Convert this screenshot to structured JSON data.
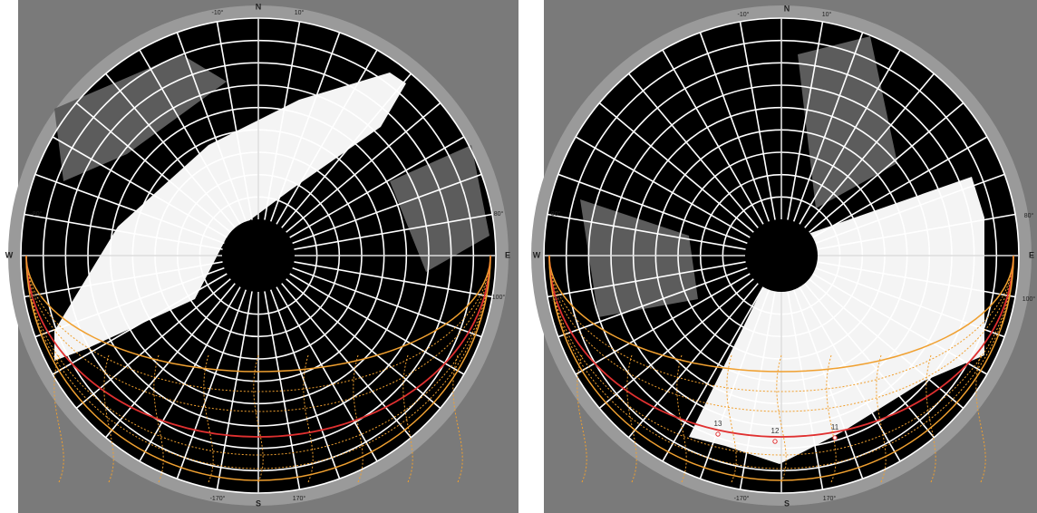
{
  "panels": [
    {
      "compass": {
        "n": "N",
        "s": "S",
        "e": "E",
        "w": "W"
      },
      "azimuth_labels": [
        "-10°",
        "10°",
        "-80°",
        "80°",
        "-100°",
        "100°",
        "-170°",
        "170°"
      ],
      "hour_labels": []
    },
    {
      "compass": {
        "n": "N",
        "s": "S",
        "e": "E",
        "w": "W"
      },
      "azimuth_labels": [
        "-10°",
        "10°",
        "-80°",
        "80°",
        "-100°",
        "100°",
        "-170°",
        "170°"
      ],
      "hour_labels": [
        "13",
        "12",
        "11"
      ]
    }
  ]
}
